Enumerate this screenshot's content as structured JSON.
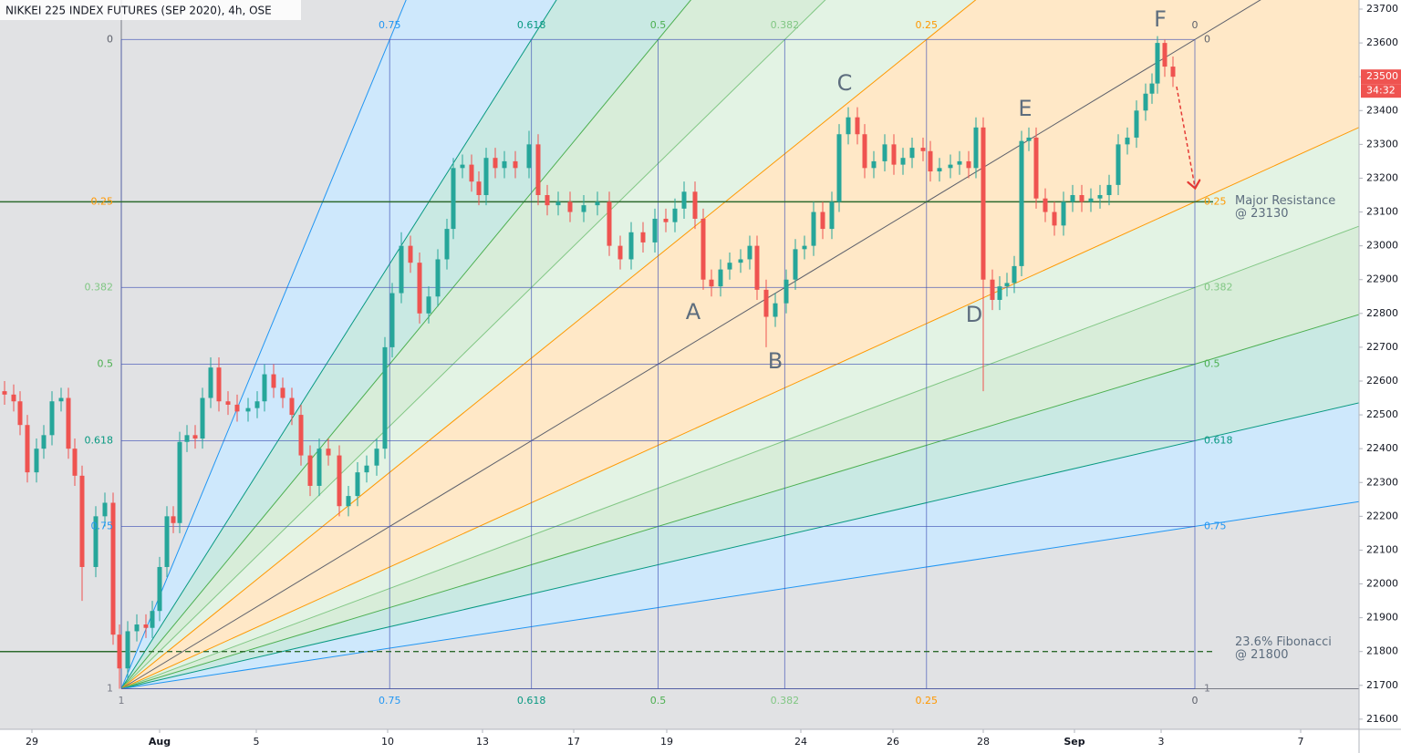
{
  "chart_data": {
    "type": "candlestick",
    "title": "NIKKEI 225 INDEX FUTURES (SEP 2020), 4h, OSE",
    "up_color": "#26a69a",
    "down_color": "#ef5350",
    "xlim": [
      0,
      149
    ],
    "ylim": [
      21570,
      23727
    ],
    "yticks": [
      21600,
      21700,
      21800,
      21900,
      22000,
      22100,
      22200,
      22300,
      22400,
      22500,
      22600,
      22700,
      22800,
      22900,
      23000,
      23100,
      23200,
      23300,
      23400,
      23500,
      23600,
      23700
    ],
    "xticks": [
      {
        "value": 3.5,
        "label": "29"
      },
      {
        "value": 17.5,
        "label": "Aug"
      },
      {
        "value": 28.1,
        "label": "5"
      },
      {
        "value": 42.5,
        "label": "10"
      },
      {
        "value": 52.9,
        "label": "13"
      },
      {
        "value": 62.9,
        "label": "17"
      },
      {
        "value": 73.1,
        "label": "19"
      },
      {
        "value": 87.8,
        "label": "24"
      },
      {
        "value": 97.9,
        "label": "26"
      },
      {
        "value": 107.8,
        "label": "28"
      },
      {
        "value": 117.8,
        "label": "Sep"
      },
      {
        "value": 127.3,
        "label": "3"
      },
      {
        "value": 142.6,
        "label": "7"
      }
    ],
    "x": [
      0.5,
      1.5,
      2.2,
      3,
      4,
      4.8,
      5.7,
      6.7,
      7.5,
      8.2,
      9,
      10.5,
      11.5,
      12.4,
      13.1,
      14,
      15,
      16,
      16.7,
      17.5,
      18.3,
      19,
      19.7,
      20.5,
      21.4,
      22.2,
      23.1,
      24,
      25,
      26,
      27.2,
      28.2,
      29,
      30,
      31,
      32,
      33,
      34,
      35,
      36,
      37.2,
      38.2,
      39.2,
      40.2,
      41.3,
      42.2,
      43,
      44,
      45,
      46,
      47,
      48,
      49,
      49.7,
      50.7,
      51.7,
      52.5,
      53.3,
      54.3,
      55.3,
      56.5,
      58,
      59,
      60,
      61.2,
      62.5,
      64,
      65.5,
      66.8,
      68,
      69.2,
      70.5,
      71.8,
      73,
      74,
      75,
      76.2,
      77.1,
      78,
      79,
      80,
      81.2,
      82.2,
      83,
      84,
      85,
      86.2,
      87.2,
      88.2,
      89.2,
      90.2,
      91.2,
      92,
      93,
      94,
      94.8,
      95.8,
      97,
      98,
      99,
      100,
      101.2,
      102,
      103,
      104.2,
      105.2,
      106.2,
      107,
      107.8,
      108.8,
      109.6,
      110.4,
      111.2,
      112,
      112.8,
      113.6,
      114.6,
      115.6,
      116.6,
      117.6,
      118.6,
      119.6,
      120.6,
      121.6,
      122.6,
      123.6,
      124.6,
      125.6,
      126.3,
      126.9,
      127.7,
      128.6
    ],
    "open": [
      22570,
      22560,
      22540,
      22470,
      22330,
      22400,
      22440,
      22540,
      22550,
      22400,
      22320,
      22050,
      22200,
      22240,
      21850,
      21750,
      21860,
      21880,
      21870,
      21920,
      22050,
      22200,
      22180,
      22420,
      22440,
      22430,
      22550,
      22640,
      22540,
      22530,
      22510,
      22520,
      22540,
      22620,
      22580,
      22550,
      22500,
      22380,
      22290,
      22400,
      22380,
      22230,
      22260,
      22330,
      22350,
      22400,
      22700,
      22860,
      23000,
      22950,
      22800,
      22850,
      22960,
      23050,
      23230,
      23240,
      23190,
      23150,
      23260,
      23230,
      23250,
      23230,
      23300,
      23150,
      23120,
      23130,
      23100,
      23120,
      23130,
      23000,
      22960,
      23040,
      23010,
      23080,
      23070,
      23110,
      23160,
      23080,
      22900,
      22880,
      22930,
      22950,
      22960,
      23000,
      22870,
      22790,
      22830,
      22900,
      22990,
      23000,
      23100,
      23050,
      23130,
      23330,
      23380,
      23330,
      23230,
      23250,
      23300,
      23240,
      23260,
      23290,
      23280,
      23220,
      23230,
      23240,
      23250,
      23230,
      23350,
      22900,
      22840,
      22880,
      22890,
      22940,
      23310,
      23320,
      23140,
      23100,
      23060,
      23130,
      23150,
      23130,
      23140,
      23150,
      23180,
      23300,
      23320,
      23400,
      23450,
      23480,
      23600,
      23530
    ],
    "high": [
      22600,
      22590,
      22570,
      22500,
      22430,
      22470,
      22570,
      22580,
      22580,
      22430,
      22350,
      22230,
      22270,
      22270,
      21880,
      21890,
      21910,
      21910,
      21950,
      22080,
      22230,
      22230,
      22450,
      22470,
      22470,
      22580,
      22670,
      22670,
      22570,
      22560,
      22550,
      22570,
      22650,
      22650,
      22610,
      22580,
      22530,
      22410,
      22430,
      22430,
      22410,
      22290,
      22360,
      22380,
      22430,
      22730,
      22890,
      23040,
      23030,
      22980,
      22880,
      22990,
      23080,
      23260,
      23270,
      23270,
      23220,
      23290,
      23290,
      23280,
      23280,
      23340,
      23330,
      23180,
      23160,
      23160,
      23150,
      23160,
      23160,
      23030,
      23070,
      23070,
      23110,
      23110,
      23140,
      23190,
      23190,
      23110,
      22930,
      22960,
      22980,
      22990,
      23030,
      23030,
      22900,
      22860,
      22930,
      23020,
      23030,
      23130,
      23130,
      23160,
      23360,
      23410,
      23410,
      23360,
      23280,
      23330,
      23330,
      23290,
      23320,
      23320,
      23310,
      23260,
      23270,
      23280,
      23280,
      23380,
      23380,
      22930,
      22910,
      22920,
      22970,
      23340,
      23350,
      23350,
      23170,
      23130,
      23160,
      23180,
      23180,
      23170,
      23180,
      23210,
      23330,
      23350,
      23430,
      23480,
      23510,
      23620,
      23610,
      23560
    ],
    "low": [
      22530,
      22510,
      22440,
      22300,
      22300,
      22370,
      22410,
      22510,
      22370,
      22290,
      21950,
      22020,
      22170,
      21820,
      21690,
      21720,
      21830,
      21840,
      21840,
      21890,
      22020,
      22150,
      22150,
      22390,
      22400,
      22400,
      22520,
      22510,
      22500,
      22480,
      22480,
      22490,
      22510,
      22550,
      22520,
      22470,
      22350,
      22260,
      22260,
      22350,
      22200,
      22200,
      22230,
      22300,
      22320,
      22370,
      22670,
      22830,
      22920,
      22770,
      22770,
      22820,
      22930,
      23020,
      23200,
      23160,
      23120,
      23120,
      23200,
      23200,
      23200,
      23200,
      23120,
      23090,
      23090,
      23070,
      23070,
      23090,
      22970,
      22930,
      22930,
      22980,
      22980,
      23040,
      23040,
      23080,
      23050,
      22870,
      22850,
      22850,
      22900,
      22920,
      22930,
      22840,
      22700,
      22760,
      22800,
      22870,
      22960,
      22970,
      23020,
      23020,
      23100,
      23300,
      23300,
      23200,
      23200,
      23220,
      23210,
      23210,
      23230,
      23250,
      23190,
      23190,
      23200,
      23210,
      23200,
      23200,
      22570,
      22810,
      22810,
      22850,
      22860,
      22910,
      23280,
      23110,
      23070,
      23030,
      23030,
      23100,
      23100,
      23100,
      23110,
      23120,
      23150,
      23270,
      23290,
      23370,
      23420,
      23450,
      23500,
      23470
    ],
    "close": [
      22560,
      22540,
      22470,
      22330,
      22400,
      22440,
      22540,
      22550,
      22400,
      22320,
      22050,
      22200,
      22240,
      21850,
      21750,
      21860,
      21880,
      21870,
      21920,
      22050,
      22200,
      22180,
      22420,
      22440,
      22430,
      22550,
      22640,
      22540,
      22530,
      22510,
      22520,
      22540,
      22620,
      22580,
      22550,
      22500,
      22380,
      22290,
      22400,
      22380,
      22230,
      22260,
      22330,
      22350,
      22400,
      22700,
      22860,
      23000,
      22950,
      22800,
      22850,
      22960,
      23050,
      23230,
      23240,
      23190,
      23150,
      23260,
      23230,
      23250,
      23230,
      23300,
      23150,
      23120,
      23130,
      23100,
      23120,
      23130,
      23000,
      22960,
      23040,
      23010,
      23080,
      23070,
      23110,
      23160,
      23080,
      22900,
      22880,
      22930,
      22950,
      22960,
      23000,
      22870,
      22790,
      22830,
      22900,
      22990,
      23000,
      23100,
      23050,
      23130,
      23330,
      23380,
      23330,
      23230,
      23250,
      23300,
      23240,
      23260,
      23290,
      23280,
      23220,
      23230,
      23240,
      23250,
      23230,
      23350,
      22900,
      22840,
      22880,
      22890,
      22940,
      23310,
      23320,
      23140,
      23100,
      23060,
      23130,
      23150,
      23130,
      23140,
      23150,
      23180,
      23300,
      23320,
      23400,
      23450,
      23480,
      23600,
      23530,
      23500
    ],
    "last_price": 23500,
    "countdown": "34:32",
    "fan": {
      "start_x": 13.3,
      "start_price": 21690,
      "end_x": 131,
      "end_price": 23610,
      "levels": [
        1,
        0.75,
        0.618,
        0.5,
        0.382,
        0.25,
        0
      ],
      "colors": [
        "#787b86",
        "#2196f3",
        "#089981",
        "#4caf50",
        "#81c784",
        "#ff9800",
        "#5d606b"
      ]
    },
    "points": [
      "A",
      "B",
      "C",
      "D",
      "E",
      "F"
    ],
    "resistance": {
      "value": 23130,
      "label": [
        "Major Resistance",
        "@ 23130"
      ],
      "color": "#2e6b2e"
    },
    "support": {
      "value": 21800,
      "label": [
        "23.6% Fibonacci",
        "@ 21800"
      ],
      "color": "#2e6b2e"
    }
  }
}
